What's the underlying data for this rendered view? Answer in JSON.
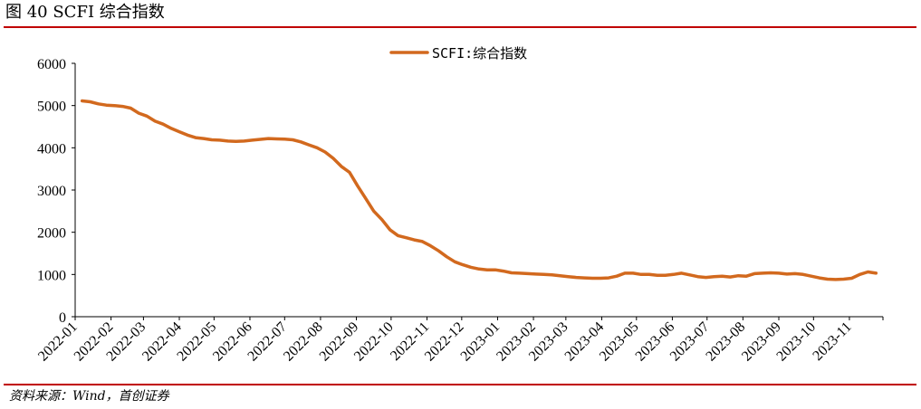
{
  "figure": {
    "title": "图 40 SCFI 综合指数",
    "source": "资料来源：Wind，首创证券",
    "accent_color": "#c00000"
  },
  "chart_data": {
    "type": "line",
    "title": "",
    "xlabel": "",
    "ylabel": "",
    "ylim": [
      0,
      6000
    ],
    "yticks": [
      0,
      1000,
      2000,
      3000,
      4000,
      5000,
      6000
    ],
    "x_tick_labels": [
      "2022-01",
      "2022-02",
      "2022-03",
      "2022-04",
      "2022-05",
      "2022-06",
      "2022-07",
      "2022-08",
      "2022-09",
      "2022-10",
      "2022-11",
      "2022-12",
      "2023-01",
      "2023-02",
      "2023-03",
      "2023-04",
      "2023-05",
      "2023-06",
      "2023-07",
      "2023-08",
      "2023-09",
      "2023-10",
      "2023-11"
    ],
    "grid": false,
    "legend_position": "top-center",
    "series": [
      {
        "name": "SCFI:综合指数",
        "color": "#d2691e",
        "points": [
          [
            "2022-01-07",
            5110
          ],
          [
            "2022-01-14",
            5090
          ],
          [
            "2022-01-21",
            5040
          ],
          [
            "2022-01-28",
            5010
          ],
          [
            "2022-02-04",
            5000
          ],
          [
            "2022-02-11",
            4980
          ],
          [
            "2022-02-18",
            4940
          ],
          [
            "2022-02-25",
            4820
          ],
          [
            "2022-03-04",
            4750
          ],
          [
            "2022-03-11",
            4630
          ],
          [
            "2022-03-18",
            4560
          ],
          [
            "2022-03-25",
            4460
          ],
          [
            "2022-04-01",
            4380
          ],
          [
            "2022-04-08",
            4300
          ],
          [
            "2022-04-15",
            4240
          ],
          [
            "2022-04-22",
            4220
          ],
          [
            "2022-04-29",
            4190
          ],
          [
            "2022-05-06",
            4180
          ],
          [
            "2022-05-13",
            4160
          ],
          [
            "2022-05-20",
            4150
          ],
          [
            "2022-05-27",
            4160
          ],
          [
            "2022-06-03",
            4180
          ],
          [
            "2022-06-10",
            4200
          ],
          [
            "2022-06-17",
            4220
          ],
          [
            "2022-06-24",
            4210
          ],
          [
            "2022-07-01",
            4205
          ],
          [
            "2022-07-08",
            4190
          ],
          [
            "2022-07-15",
            4140
          ],
          [
            "2022-07-22",
            4070
          ],
          [
            "2022-07-29",
            4000
          ],
          [
            "2022-08-05",
            3900
          ],
          [
            "2022-08-12",
            3750
          ],
          [
            "2022-08-19",
            3560
          ],
          [
            "2022-08-26",
            3420
          ],
          [
            "2022-09-02",
            3100
          ],
          [
            "2022-09-09",
            2800
          ],
          [
            "2022-09-16",
            2500
          ],
          [
            "2022-09-23",
            2300
          ],
          [
            "2022-09-30",
            2060
          ],
          [
            "2022-10-07",
            1920
          ],
          [
            "2022-10-14",
            1870
          ],
          [
            "2022-10-21",
            1820
          ],
          [
            "2022-10-28",
            1780
          ],
          [
            "2022-11-04",
            1680
          ],
          [
            "2022-11-11",
            1560
          ],
          [
            "2022-11-18",
            1420
          ],
          [
            "2022-11-25",
            1300
          ],
          [
            "2022-12-02",
            1230
          ],
          [
            "2022-12-09",
            1170
          ],
          [
            "2022-12-16",
            1130
          ],
          [
            "2022-12-23",
            1110
          ],
          [
            "2022-12-30",
            1110
          ],
          [
            "2023-01-06",
            1080
          ],
          [
            "2023-01-13",
            1040
          ],
          [
            "2023-01-20",
            1030
          ],
          [
            "2023-01-27",
            1020
          ],
          [
            "2023-02-03",
            1010
          ],
          [
            "2023-02-10",
            1000
          ],
          [
            "2023-02-17",
            990
          ],
          [
            "2023-02-24",
            970
          ],
          [
            "2023-03-03",
            950
          ],
          [
            "2023-03-10",
            930
          ],
          [
            "2023-03-17",
            920
          ],
          [
            "2023-03-24",
            910
          ],
          [
            "2023-03-31",
            910
          ],
          [
            "2023-04-07",
            920
          ],
          [
            "2023-04-14",
            960
          ],
          [
            "2023-04-21",
            1030
          ],
          [
            "2023-04-28",
            1030
          ],
          [
            "2023-05-05",
            1000
          ],
          [
            "2023-05-12",
            1000
          ],
          [
            "2023-05-19",
            980
          ],
          [
            "2023-05-26",
            980
          ],
          [
            "2023-06-02",
            1000
          ],
          [
            "2023-06-09",
            1030
          ],
          [
            "2023-06-16",
            990
          ],
          [
            "2023-06-23",
            950
          ],
          [
            "2023-06-30",
            930
          ],
          [
            "2023-07-07",
            950
          ],
          [
            "2023-07-14",
            960
          ],
          [
            "2023-07-21",
            940
          ],
          [
            "2023-07-28",
            970
          ],
          [
            "2023-08-04",
            960
          ],
          [
            "2023-08-11",
            1020
          ],
          [
            "2023-08-18",
            1030
          ],
          [
            "2023-08-25",
            1040
          ],
          [
            "2023-09-01",
            1030
          ],
          [
            "2023-09-08",
            1010
          ],
          [
            "2023-09-15",
            1020
          ],
          [
            "2023-09-22",
            1000
          ],
          [
            "2023-09-29",
            960
          ],
          [
            "2023-10-06",
            920
          ],
          [
            "2023-10-13",
            890
          ],
          [
            "2023-10-20",
            880
          ],
          [
            "2023-10-27",
            890
          ],
          [
            "2023-11-03",
            910
          ],
          [
            "2023-11-10",
            1000
          ],
          [
            "2023-11-17",
            1060
          ],
          [
            "2023-11-24",
            1030
          ]
        ]
      }
    ]
  }
}
